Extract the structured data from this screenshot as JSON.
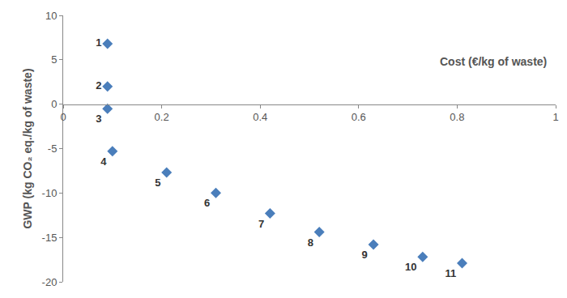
{
  "chart_data": {
    "type": "scatter",
    "x_label": "Cost (€/kg of waste)",
    "y_label": "GWP (kg CO₂ eq./kg of waste)",
    "x": [
      0.09,
      0.09,
      0.09,
      0.1,
      0.21,
      0.31,
      0.42,
      0.52,
      0.63,
      0.73,
      0.81
    ],
    "values": [
      6.8,
      2.0,
      -0.5,
      -5.3,
      -7.7,
      -10.0,
      -12.3,
      -14.4,
      -15.8,
      -17.2,
      -17.9
    ],
    "labels": [
      "1",
      "2",
      "3",
      "4",
      "5",
      "6",
      "7",
      "8",
      "9",
      "10",
      "11"
    ],
    "color": "#4a7ebb",
    "marker": "diamond",
    "xlim": [
      0,
      1
    ],
    "xticks": [
      0,
      0.2,
      0.4,
      0.6,
      0.8,
      1
    ],
    "ylim": [
      -20,
      10
    ],
    "yticks": [
      -20,
      -15,
      -10,
      -5,
      0,
      5,
      10
    ],
    "grid": false
  }
}
